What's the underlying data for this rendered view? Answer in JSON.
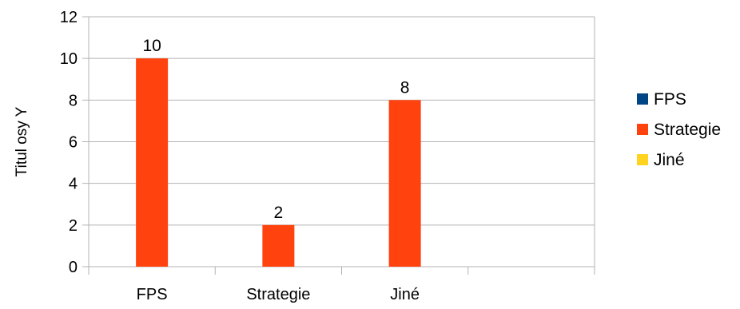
{
  "chart_data": {
    "type": "bar",
    "title": "",
    "xlabel": "",
    "ylabel": "Titul osy Y",
    "ylim": [
      0,
      12
    ],
    "yticks": [
      0,
      2,
      4,
      6,
      8,
      10,
      12
    ],
    "grid": true,
    "categories": [
      "FPS",
      "Strategie",
      "Jiné",
      ""
    ],
    "bar_color": "#ff420e",
    "values": [
      10,
      2,
      8,
      null
    ],
    "data_labels": [
      "10",
      "2",
      "8",
      ""
    ],
    "legend": {
      "position": "right",
      "entries": [
        {
          "name": "FPS",
          "color": "#004586"
        },
        {
          "name": "Strategie",
          "color": "#ff420e"
        },
        {
          "name": "Jiné",
          "color": "#ffd320"
        }
      ]
    }
  }
}
